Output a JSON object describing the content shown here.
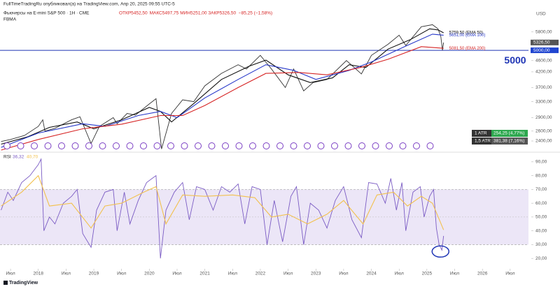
{
  "header": {
    "publisher": "FullTimeTradingRu опубликовал(а) на TradingView.com, Апр 20, 2025 09:55 UTC-5",
    "footer": "TradingView"
  },
  "chart_data": [
    {
      "type": "line",
      "title": "Фьючерсы на E-mini S&P 500 · 1Н · CME",
      "ohlc": [
        "ОТКР5452,50",
        "МАКС5497,75",
        "МИН5251,00",
        "ЗАКР5326,50",
        "−85,25 (−1,58%)"
      ],
      "indicator": "FBMA",
      "y_unit": "USD",
      "log_scale": true,
      "xlim": [
        2017.31,
        2026.83
      ],
      "xticks": [
        {
          "value": 2017.5,
          "label": "Июл"
        },
        2018,
        {
          "value": 2018.5,
          "label": "Июл"
        },
        2019,
        {
          "value": 2019.5,
          "label": "Июл"
        },
        2020,
        {
          "value": 2020.5,
          "label": "Июл"
        },
        2021,
        {
          "value": 2021.5,
          "label": "Июл"
        },
        2022,
        {
          "value": 2022.5,
          "label": "Июл"
        },
        2023,
        {
          "value": 2023.5,
          "label": "Июл"
        },
        2024,
        {
          "value": 2024.5,
          "label": "Июл"
        },
        2025,
        {
          "value": 2025.5,
          "label": "Июл"
        },
        2026,
        {
          "value": 2026.5,
          "label": "Июл"
        }
      ],
      "ylim": [
        2230,
        7020
      ],
      "yticks": [
        {
          "value": 5800,
          "label": "5800,00"
        },
        {
          "value": 4600,
          "label": "4600,00"
        },
        {
          "value": 4200,
          "label": "4200,00"
        },
        {
          "value": 3700,
          "label": "3700,00"
        },
        {
          "value": 3300,
          "label": "3300,00"
        },
        {
          "value": 2900,
          "label": "2900,00"
        },
        {
          "value": 2600,
          "label": "2600,00"
        },
        {
          "value": 2400,
          "label": "2400,00"
        }
      ],
      "hline": {
        "value": 5000,
        "label": "5000",
        "color": "#1f35b5"
      },
      "price_tags": [
        {
          "value": 5326.5,
          "label": "5326,50",
          "color": "#555555"
        },
        {
          "value": 5000,
          "label": "5000,00",
          "color": "#2146d0"
        }
      ],
      "atr": [
        {
          "label": "1 ATR",
          "value": "254,25 (4,77%)"
        },
        {
          "label": "1,5 ATR",
          "value": "381,38 (7,16%)"
        }
      ],
      "series": [
        {
          "color": "#333333",
          "x": [
            2017.33,
            2017.5,
            2017.75,
            2018.0,
            2018.08,
            2018.12,
            2018.3,
            2018.6,
            2018.75,
            2018.95,
            2019.1,
            2019.35,
            2019.42,
            2019.6,
            2019.75,
            2020.0,
            2020.12,
            2020.22,
            2020.4,
            2020.6,
            2020.8,
            2021.0,
            2021.3,
            2021.6,
            2021.75,
            2022.0,
            2022.2,
            2022.45,
            2022.6,
            2022.78,
            2022.95,
            2023.2,
            2023.55,
            2023.82,
            2024.0,
            2024.3,
            2024.5,
            2024.62,
            2024.9,
            2025.1,
            2025.2,
            2025.25,
            2025.28,
            2025.3
          ],
          "values": [
            2390,
            2430,
            2510,
            2700,
            2850,
            2600,
            2660,
            2850,
            2920,
            2350,
            2700,
            2900,
            2760,
            3000,
            2960,
            3240,
            3380,
            2250,
            3000,
            3350,
            3300,
            3750,
            4150,
            4450,
            4300,
            4800,
            4300,
            3700,
            4300,
            3600,
            3850,
            3950,
            4600,
            4130,
            4800,
            5250,
            5650,
            5200,
            6050,
            6150,
            5950,
            5600,
            5000,
            5326.5
          ]
        },
        {
          "end_label": "5759,50 (EMA 50)",
          "color": "#111111",
          "x": [
            2017.33,
            2017.8,
            2018.2,
            2018.7,
            2019.0,
            2019.5,
            2020.0,
            2020.2,
            2020.4,
            2020.8,
            2021.3,
            2021.8,
            2022.1,
            2022.5,
            2022.9,
            2023.3,
            2023.6,
            2023.9,
            2024.3,
            2024.7,
            2025.05,
            2025.2,
            2025.3
          ],
          "values": [
            2340,
            2480,
            2680,
            2800,
            2650,
            2850,
            3150,
            3050,
            2800,
            3250,
            3950,
            4400,
            4620,
            4100,
            3850,
            4000,
            4450,
            4350,
            5050,
            5450,
            5950,
            5900,
            5759.5
          ]
        },
        {
          "end_label": "5651,00 (EMA 100)",
          "color": "#2637c9",
          "x": [
            2017.33,
            2018.0,
            2018.8,
            2019.2,
            2019.8,
            2020.2,
            2020.5,
            2021.0,
            2021.6,
            2022.1,
            2022.6,
            2023.0,
            2023.6,
            2024.0,
            2024.6,
            2025.1,
            2025.3
          ],
          "values": [
            2280,
            2560,
            2760,
            2700,
            2950,
            3050,
            2900,
            3400,
            3950,
            4450,
            4250,
            3950,
            4250,
            4550,
            5150,
            5700,
            5651
          ]
        },
        {
          "end_label": "5081,50 (EMA 200)",
          "color": "#d62424",
          "x": [
            2017.33,
            2018.0,
            2018.8,
            2019.5,
            2020.2,
            2020.6,
            2021.0,
            2021.6,
            2022.1,
            2022.7,
            2023.2,
            2023.8,
            2024.3,
            2024.9,
            2025.3
          ],
          "values": [
            2230,
            2430,
            2650,
            2750,
            2950,
            2950,
            3200,
            3700,
            4150,
            4180,
            4100,
            4350,
            4650,
            5150,
            5081.5
          ]
        }
      ]
    },
    {
      "type": "line",
      "title": "RSI",
      "readings": [
        "36,32",
        "40,70"
      ],
      "xlim": [
        2017.31,
        2026.83
      ],
      "ylim": [
        14,
        96
      ],
      "yticks": [
        {
          "value": 90,
          "label": "90,00"
        },
        {
          "value": 80,
          "label": "80,00"
        },
        {
          "value": 70,
          "label": "70,00"
        },
        {
          "value": 60,
          "label": "60,00"
        },
        {
          "value": 50,
          "label": "50,00"
        },
        {
          "value": 40,
          "label": "40,00"
        },
        {
          "value": 30,
          "label": "30,00"
        },
        {
          "value": 20,
          "label": "20,00"
        }
      ],
      "band": [
        30,
        70
      ],
      "midline": 50,
      "band_color": "#ece6f7",
      "series": [
        {
          "color": "#7b5cc4",
          "x": [
            2017.33,
            2017.45,
            2017.55,
            2017.7,
            2017.85,
            2018.0,
            2018.05,
            2018.1,
            2018.2,
            2018.3,
            2018.45,
            2018.6,
            2018.7,
            2018.8,
            2018.95,
            2019.05,
            2019.2,
            2019.35,
            2019.42,
            2019.55,
            2019.65,
            2019.8,
            2019.95,
            2020.05,
            2020.12,
            2020.2,
            2020.3,
            2020.45,
            2020.6,
            2020.72,
            2020.85,
            2021.0,
            2021.15,
            2021.3,
            2021.45,
            2021.6,
            2021.72,
            2021.85,
            2022.0,
            2022.12,
            2022.25,
            2022.4,
            2022.55,
            2022.65,
            2022.78,
            2022.9,
            2023.05,
            2023.2,
            2023.35,
            2023.5,
            2023.65,
            2023.82,
            2023.95,
            2024.1,
            2024.25,
            2024.35,
            2024.45,
            2024.55,
            2024.62,
            2024.75,
            2024.88,
            2024.95,
            2025.05,
            2025.12,
            2025.17,
            2025.22,
            2025.27,
            2025.3
          ],
          "values": [
            55,
            68,
            62,
            75,
            80,
            88,
            92,
            40,
            50,
            45,
            60,
            65,
            70,
            38,
            28,
            55,
            68,
            70,
            40,
            68,
            45,
            62,
            75,
            78,
            80,
            20,
            55,
            68,
            75,
            48,
            72,
            70,
            55,
            72,
            68,
            74,
            45,
            72,
            70,
            30,
            62,
            32,
            65,
            72,
            30,
            60,
            55,
            42,
            62,
            72,
            48,
            35,
            75,
            74,
            60,
            78,
            55,
            75,
            40,
            68,
            72,
            50,
            65,
            70,
            42,
            30,
            26,
            36.32
          ]
        },
        {
          "color": "#f2c14e",
          "x": [
            2017.33,
            2017.7,
            2018.0,
            2018.2,
            2018.6,
            2018.95,
            2019.2,
            2019.5,
            2019.9,
            2020.12,
            2020.3,
            2020.6,
            2021.0,
            2021.5,
            2021.9,
            2022.2,
            2022.5,
            2022.85,
            2023.2,
            2023.5,
            2023.85,
            2024.1,
            2024.4,
            2024.65,
            2024.9,
            2025.1,
            2025.3
          ],
          "values": [
            58,
            68,
            80,
            58,
            60,
            42,
            58,
            60,
            68,
            72,
            45,
            66,
            65,
            66,
            64,
            50,
            52,
            45,
            52,
            62,
            45,
            66,
            68,
            58,
            65,
            60,
            40.7
          ]
        }
      ]
    }
  ]
}
